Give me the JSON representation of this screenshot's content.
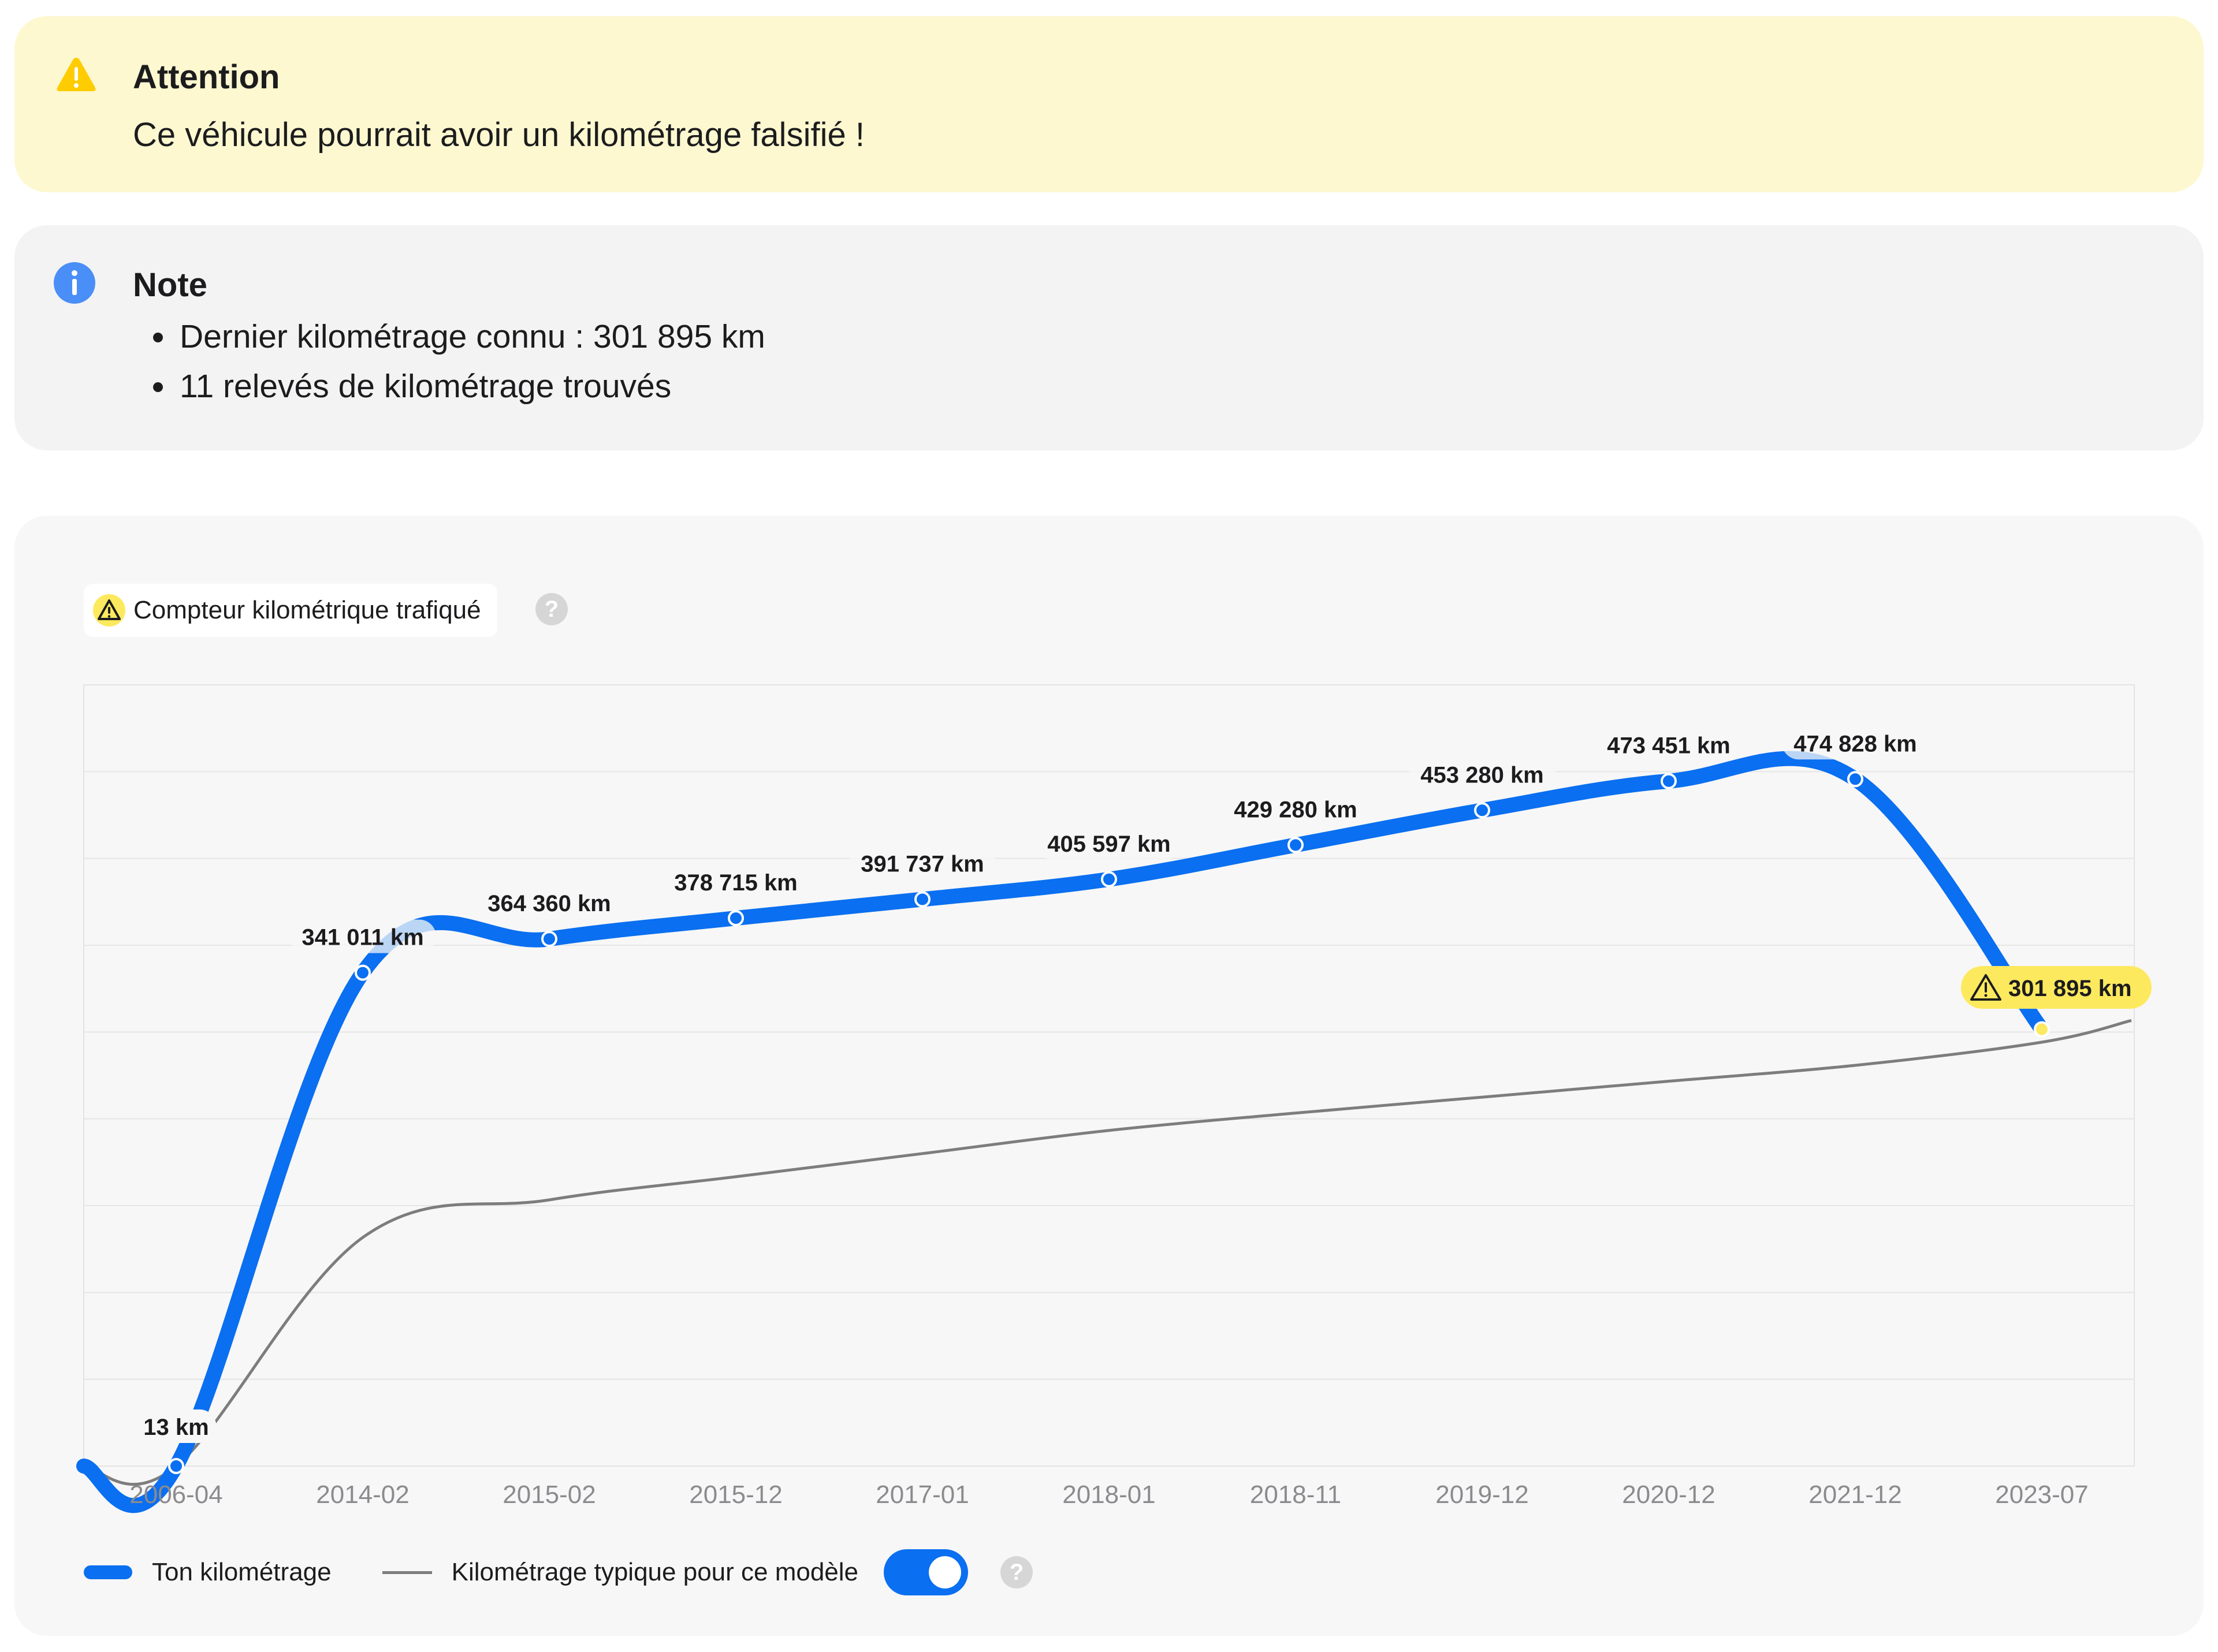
{
  "warning": {
    "title": "Attention",
    "message": "Ce véhicule pourrait avoir un kilométrage falsifié !",
    "icon": "warning-triangle-icon",
    "color": "#fdf8d0"
  },
  "note": {
    "title": "Note",
    "items": [
      "Dernier kilométrage connu : 301 895 km",
      "11 relevés de kilométrage trouvés"
    ],
    "icon": "info-icon"
  },
  "chart_panel": {
    "badge_label": "Compteur kilométrique trafiqué",
    "help": "?"
  },
  "legend": {
    "series1": "Ton kilométrage",
    "series2": "Kilométrage typique pour ce modèle",
    "toggle_on": true,
    "help": "?"
  },
  "chart_data": {
    "type": "line",
    "categories": [
      "2006-04",
      "2014-02",
      "2015-02",
      "2015-12",
      "2017-01",
      "2018-01",
      "2018-11",
      "2019-12",
      "2020-12",
      "2021-12",
      "2023-07"
    ],
    "ylim": [
      0,
      540000
    ],
    "grid": true,
    "legend": "bottom-left",
    "series": [
      {
        "name": "Ton kilométrage",
        "color": "#0a6ff0",
        "values": [
          13,
          341011,
          364360,
          378715,
          391737,
          405597,
          429280,
          453280,
          473451,
          474828,
          301895
        ],
        "labels": [
          "13 km",
          "341 011 km",
          "364 360 km",
          "378 715 km",
          "391 737 km",
          "405 597 km",
          "429 280 km",
          "453 280 km",
          "473 451 km",
          "474 828 km",
          "301 895 km"
        ],
        "flagged_index": 10,
        "flag_color": "#fde95e"
      },
      {
        "name": "Kilométrage typique pour ce modèle",
        "color": "#7d7d7d",
        "values": [
          13,
          158000,
          184000,
          200000,
          216000,
          232000,
          244000,
          255000,
          266000,
          277000,
          293000
        ],
        "end_value": 308000
      }
    ]
  }
}
